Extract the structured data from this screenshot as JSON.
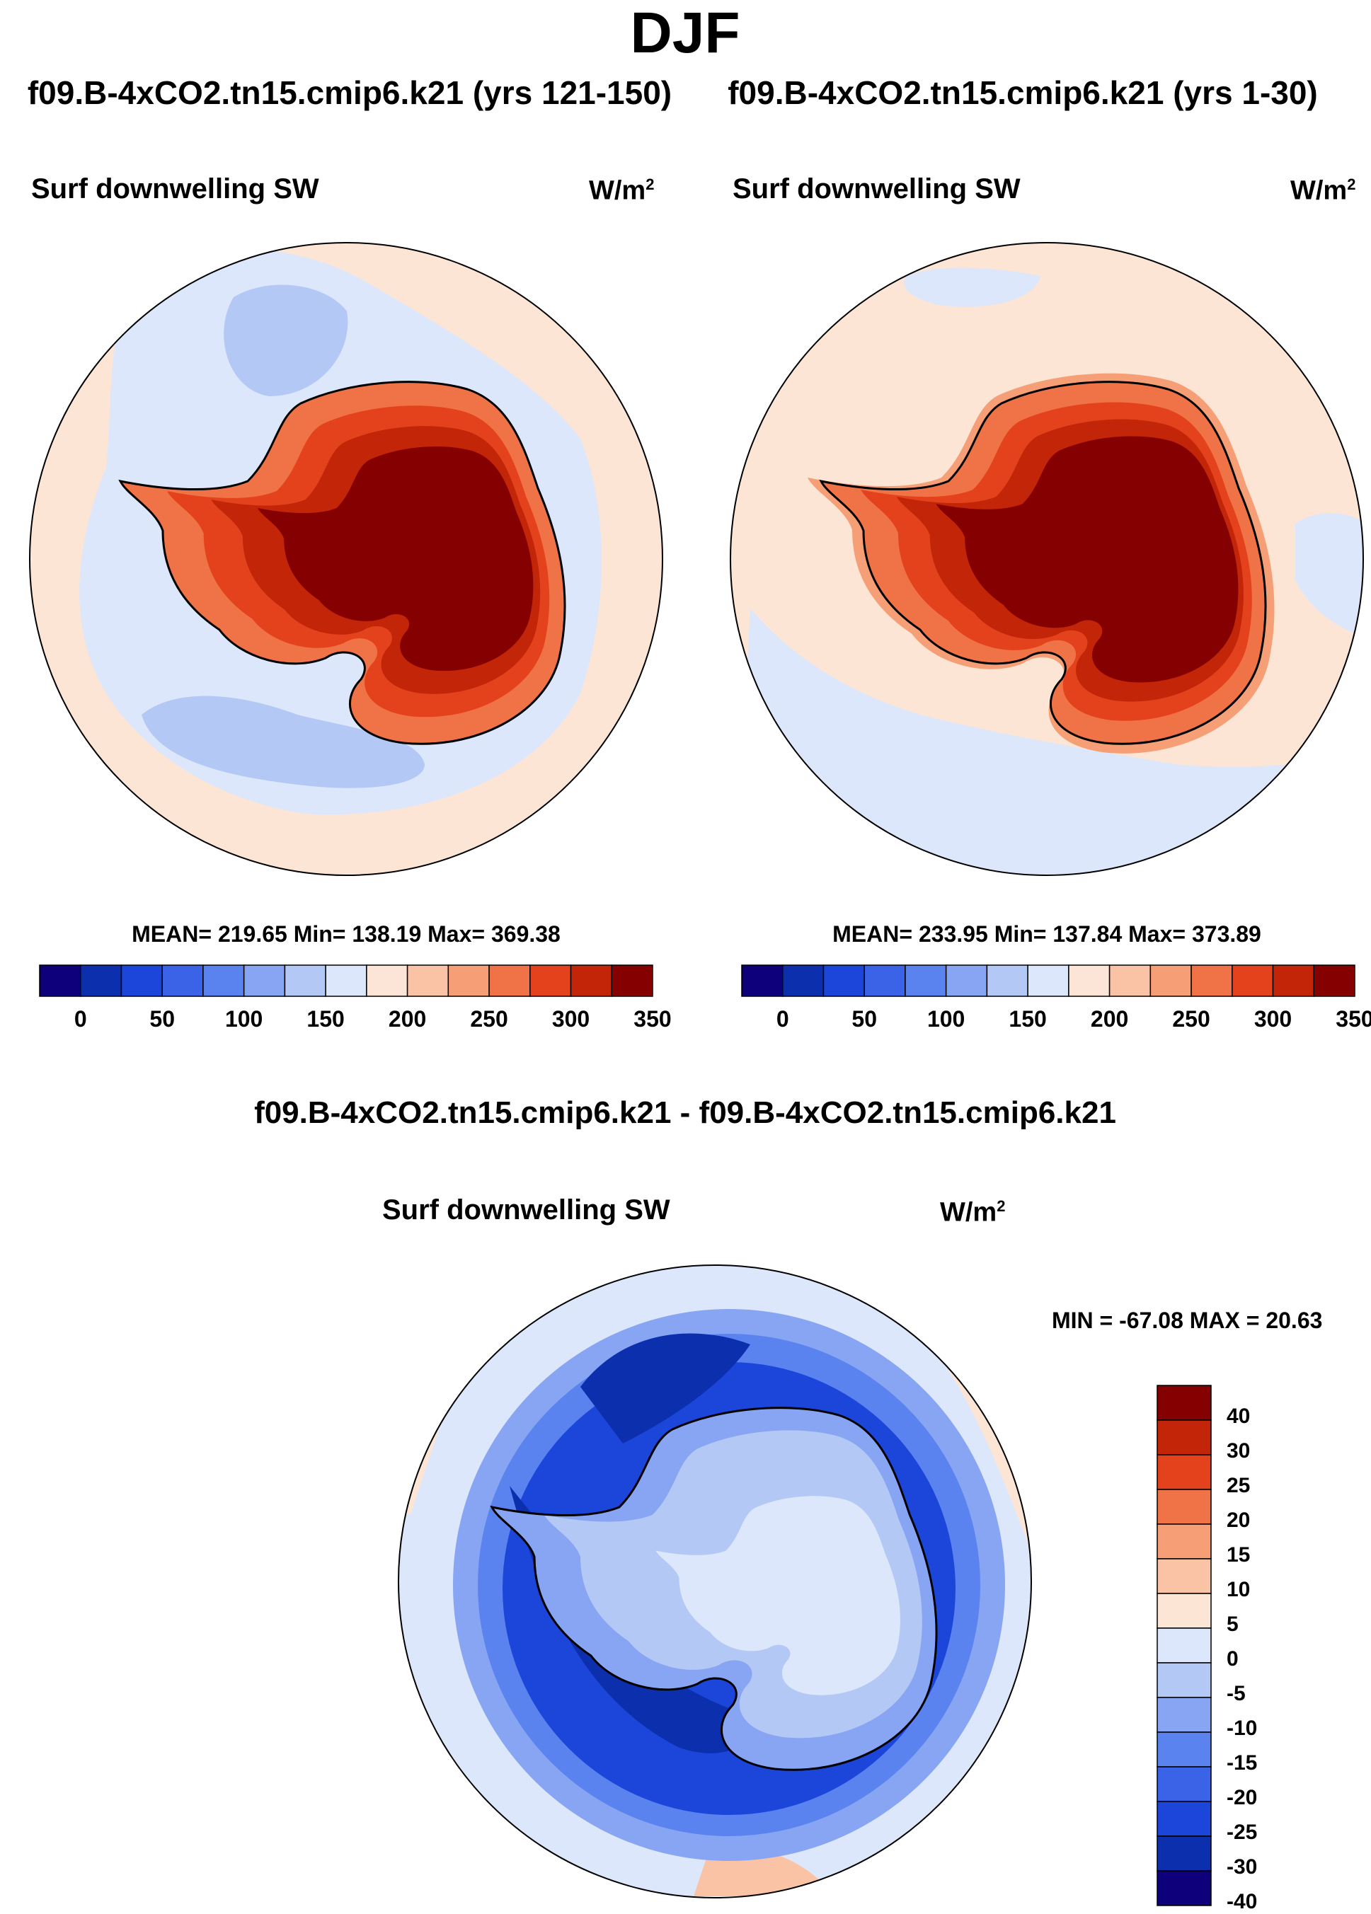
{
  "header": {
    "title": "DJF"
  },
  "panels": [
    {
      "case_title": "f09.B-4xCO2.tn15.cmip6.k21 (yrs 121-150)",
      "variable": "Surf downwelling SW",
      "units_base": "W/m",
      "units_exp": "2",
      "stats": "MEAN= 219.65  Min= 138.19  Max= 369.38"
    },
    {
      "case_title": "f09.B-4xCO2.tn15.cmip6.k21 (yrs 1-30)",
      "variable": "Surf downwelling SW",
      "units_base": "W/m",
      "units_exp": "2",
      "stats": "MEAN= 233.95  Min= 137.84  Max= 373.89"
    }
  ],
  "diff_panel": {
    "title": "f09.B-4xCO2.tn15.cmip6.k21 - f09.B-4xCO2.tn15.cmip6.k21",
    "variable": "Surf downwelling SW",
    "units_base": "W/m",
    "units_exp": "2",
    "stats": "MIN = -67.08 MAX =  20.63"
  },
  "colorbar_h": {
    "colors": [
      "#0d007a",
      "#0c2fae",
      "#1c46d9",
      "#3a63e8",
      "#5b83ef",
      "#87a5f2",
      "#b4c8f6",
      "#dce7fb",
      "#fce5d6",
      "#fbc3a6",
      "#f69e76",
      "#f07347",
      "#e4421c",
      "#c32508",
      "#850000"
    ],
    "labels": [
      "0",
      "50",
      "100",
      "150",
      "200",
      "250",
      "300",
      "350"
    ]
  },
  "colorbar_v": {
    "colors": [
      "#850000",
      "#c32508",
      "#e4421c",
      "#f07347",
      "#f69e76",
      "#fbc3a6",
      "#fde5d6",
      "#dce7fb",
      "#b4c8f6",
      "#87a5f2",
      "#5b83ef",
      "#3a63e8",
      "#1c46d9",
      "#0c2fae",
      "#0d007a"
    ],
    "labels": [
      "40",
      "30",
      "25",
      "20",
      "15",
      "10",
      "5",
      "0",
      "-5",
      "-10",
      "-15",
      "-20",
      "-25",
      "-30",
      "-40"
    ]
  },
  "map_colors": {
    "ocean_light_pos": "#fde5d6",
    "ocean_light_neg": "#dce7fb",
    "ocean_mid_neg": "#b4c8f6",
    "land_outer": "#f07347",
    "land_mid": "#e4421c",
    "land_inner": "#c32508",
    "land_core": "#850000",
    "diff_deep": "#0d007a",
    "diff_dark": "#0c2fae",
    "diff_mid": "#3a63e8",
    "diff_light": "#87a5f2"
  }
}
